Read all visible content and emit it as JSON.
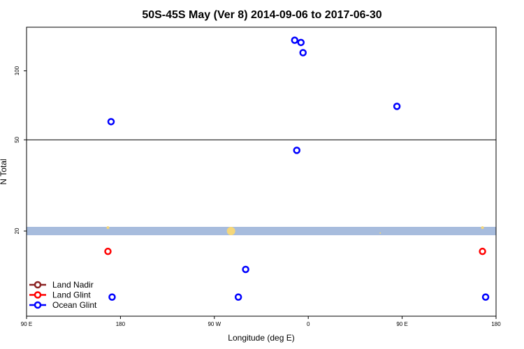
{
  "chart_data": {
    "type": "scatter",
    "title": "50S-45S May (Ver 8)   2014-09-06 to 2017-06-30",
    "xlabel": "Longitude (deg E)",
    "ylabel": "N Total",
    "x_ticks": [
      {
        "lon": 90,
        "label": "90 E"
      },
      {
        "lon": 180,
        "label": "180"
      },
      {
        "lon": 270,
        "label": "90 W"
      },
      {
        "lon": 360,
        "label": "0"
      },
      {
        "lon": 450,
        "label": "90 E"
      },
      {
        "lon": 540,
        "label": "180"
      }
    ],
    "xlim": [
      90,
      540
    ],
    "y_scale": "log",
    "ylim": [
      8.5,
      155
    ],
    "y_ticks": [
      20,
      50,
      100
    ],
    "reference_line_y": 50,
    "grid": false,
    "legend_position": "bottom-left",
    "series": [
      {
        "name": "Land Nadir",
        "color": "#8B2323",
        "points": []
      },
      {
        "name": "Land Glint",
        "color": "#FF0000",
        "points": [
          {
            "x": 168,
            "y": 16.3
          },
          {
            "x": 527,
            "y": 16.3
          }
        ]
      },
      {
        "name": "Ocean Glint",
        "color": "#0000FF",
        "points": [
          {
            "x": 171,
            "y": 60
          },
          {
            "x": 349,
            "y": 45
          },
          {
            "x": 347,
            "y": 136
          },
          {
            "x": 353,
            "y": 133
          },
          {
            "x": 355,
            "y": 120
          },
          {
            "x": 445,
            "y": 70
          },
          {
            "x": 300,
            "y": 13.6
          },
          {
            "x": 172,
            "y": 10.3
          },
          {
            "x": 293,
            "y": 10.3
          },
          {
            "x": 530,
            "y": 10.3
          }
        ]
      }
    ],
    "band": {
      "y": 20,
      "color": "#A7BCDD"
    },
    "band_dots": {
      "color": "#F5D77A",
      "points": [
        {
          "x": 168,
          "y": 20.7,
          "r": 2
        },
        {
          "x": 286,
          "y": 20,
          "r": 6
        },
        {
          "x": 527,
          "y": 20.7,
          "r": 2
        },
        {
          "x": 429,
          "y": 19.6,
          "r": 1
        }
      ]
    }
  }
}
